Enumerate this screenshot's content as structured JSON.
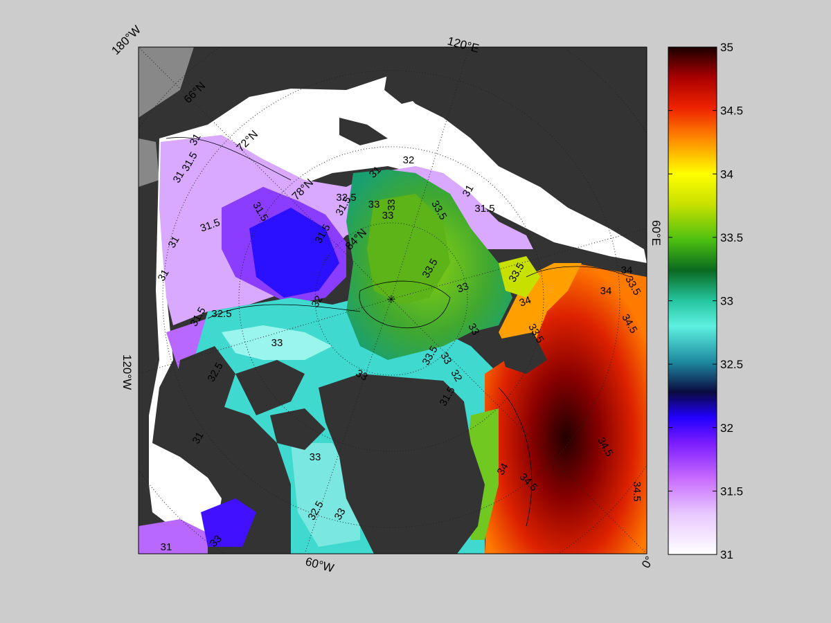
{
  "map": {
    "edge_labels": {
      "top_left": "180°W",
      "top": "120°E",
      "right": "60°E",
      "left": "120°W",
      "bottom": "60°W",
      "bottom_right": "0°"
    },
    "latitude_labels": [
      "66°N",
      "72°N",
      "78°N",
      "84°N"
    ],
    "contour_labels": [
      "31",
      "31.5",
      "31",
      "31.5",
      "31.5",
      "31.5",
      "31",
      "31",
      "31.5",
      "32",
      "32.5",
      "31.5",
      "32.5",
      "31",
      "32",
      "33",
      "33",
      "33",
      "33.5",
      "33.5",
      "33",
      "31",
      "31.5",
      "33.5",
      "34",
      "33.5",
      "33",
      "33.5",
      "33",
      "33",
      "33",
      "33",
      "32.5",
      "33",
      "34",
      "34.5",
      "34",
      "34.5",
      "34.5",
      "34.5",
      "34",
      "33.5",
      "32",
      "31.5",
      "31",
      "32.5",
      "31",
      "33"
    ],
    "colors": {
      "land": "#333333",
      "ice": "#ffffff",
      "frame_background": "#cccccc"
    }
  },
  "colorbar": {
    "ticks": [
      "35",
      "34.5",
      "34",
      "33.5",
      "33",
      "32.5",
      "32",
      "31.5",
      "31"
    ],
    "min": 31,
    "max": 35,
    "colors": [
      "#ffffff",
      "#c86bff",
      "#2200ff",
      "#1e8aa0",
      "#5ef0e0",
      "#1a9a4a",
      "#4cc010",
      "#ffff00",
      "#ff8800",
      "#ee2200",
      "#aa0000",
      "#1a0000"
    ]
  }
}
